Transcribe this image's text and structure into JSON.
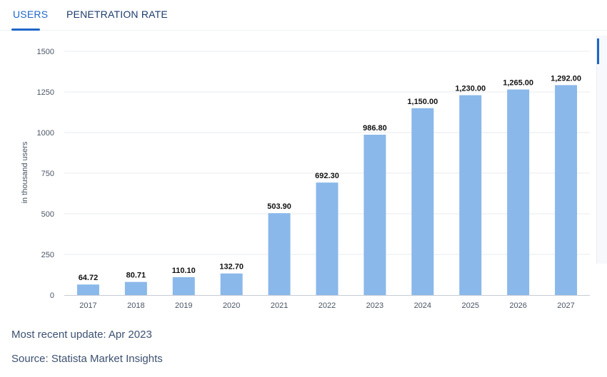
{
  "tabs": [
    {
      "label": "USERS",
      "active": true
    },
    {
      "label": "PENETRATION RATE",
      "active": false
    }
  ],
  "footer": {
    "update": "Most recent update: Apr 2023",
    "source": "Source: Statista Market Insights"
  },
  "colors": {
    "bar": "#8ab8ea",
    "accent": "#1f66c9",
    "grid": "#e8ebef"
  },
  "chart_data": {
    "type": "bar",
    "title": "",
    "xlabel": "",
    "ylabel": "in thousand users",
    "categories": [
      "2017",
      "2018",
      "2019",
      "2020",
      "2021",
      "2022",
      "2023",
      "2024",
      "2025",
      "2026",
      "2027"
    ],
    "values": [
      64.72,
      80.71,
      110.1,
      132.7,
      503.9,
      692.3,
      986.8,
      1150.0,
      1230.0,
      1265.0,
      1292.0
    ],
    "value_labels": [
      "64.72",
      "80.71",
      "110.10",
      "132.70",
      "503.90",
      "692.30",
      "986.80",
      "1,150.00",
      "1,230.00",
      "1,265.00",
      "1,292.00"
    ],
    "yticks": [
      0,
      250,
      500,
      750,
      1000,
      1250,
      1500
    ],
    "ylim": [
      0,
      1500
    ],
    "grid": true
  }
}
